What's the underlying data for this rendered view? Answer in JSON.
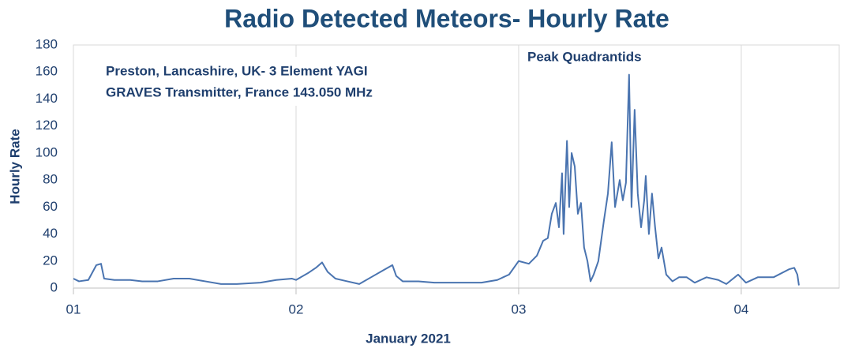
{
  "chart_data": {
    "type": "line",
    "title": "Radio Detected Meteors- Hourly Rate",
    "annotations": [
      "Preston, Lancashire, UK-  3 Element YAGI",
      "GRAVES Transmitter, France 143.050 MHz",
      "Peak Quadrantids"
    ],
    "xlabel": "January 2021",
    "ylabel": "Hourly Rate",
    "x": [
      1.0,
      1.025,
      1.067,
      1.103,
      1.124,
      1.138,
      1.184,
      1.255,
      1.309,
      1.379,
      1.45,
      1.521,
      1.592,
      1.663,
      1.734,
      1.84,
      1.911,
      1.982,
      2.0,
      2.053,
      2.089,
      2.117,
      2.142,
      2.177,
      2.23,
      2.284,
      2.337,
      2.39,
      2.433,
      2.45,
      2.479,
      2.55,
      2.621,
      2.727,
      2.833,
      2.904,
      2.957,
      3.0,
      3.046,
      3.082,
      3.11,
      3.131,
      3.149,
      3.167,
      3.181,
      3.195,
      3.202,
      3.217,
      3.227,
      3.238,
      3.252,
      3.266,
      3.28,
      3.294,
      3.309,
      3.323,
      3.337,
      3.358,
      3.383,
      3.401,
      3.418,
      3.433,
      3.454,
      3.468,
      3.482,
      3.496,
      3.507,
      3.521,
      3.535,
      3.55,
      3.564,
      3.571,
      3.585,
      3.599,
      3.613,
      3.628,
      3.642,
      3.663,
      3.691,
      3.72,
      3.755,
      3.791,
      3.844,
      3.897,
      3.933,
      3.986,
      4.021,
      4.074,
      4.145,
      4.216,
      4.238,
      4.252,
      4.259
    ],
    "series": [
      {
        "name": "Hourly Rate",
        "color": "#4a74b0",
        "values": [
          7,
          5,
          6,
          17,
          18,
          7,
          6,
          6,
          5,
          5,
          7,
          7,
          5,
          3,
          3,
          4,
          6,
          7,
          6,
          11,
          15,
          19,
          12,
          7,
          5,
          3,
          8,
          13,
          17,
          9,
          5,
          5,
          4,
          4,
          4,
          6,
          10,
          20,
          18,
          24,
          35,
          37,
          55,
          63,
          45,
          85,
          40,
          109,
          60,
          100,
          90,
          55,
          63,
          30,
          20,
          5,
          10,
          20,
          50,
          70,
          108,
          60,
          80,
          65,
          78,
          158,
          60,
          132,
          70,
          45,
          65,
          83,
          40,
          70,
          45,
          22,
          30,
          10,
          5,
          8,
          8,
          4,
          8,
          6,
          3,
          10,
          4,
          8,
          8,
          14,
          15,
          10,
          2
        ]
      }
    ],
    "xlim": [
      1,
      4.44
    ],
    "xticks": [
      {
        "value": 1,
        "label": "01"
      },
      {
        "value": 2,
        "label": "02"
      },
      {
        "value": 3,
        "label": "03"
      },
      {
        "value": 4,
        "label": "04"
      }
    ],
    "ylim": [
      0,
      180
    ],
    "yticks": [
      0,
      20,
      40,
      60,
      80,
      100,
      120,
      140,
      160,
      180
    ],
    "grid": "x"
  }
}
